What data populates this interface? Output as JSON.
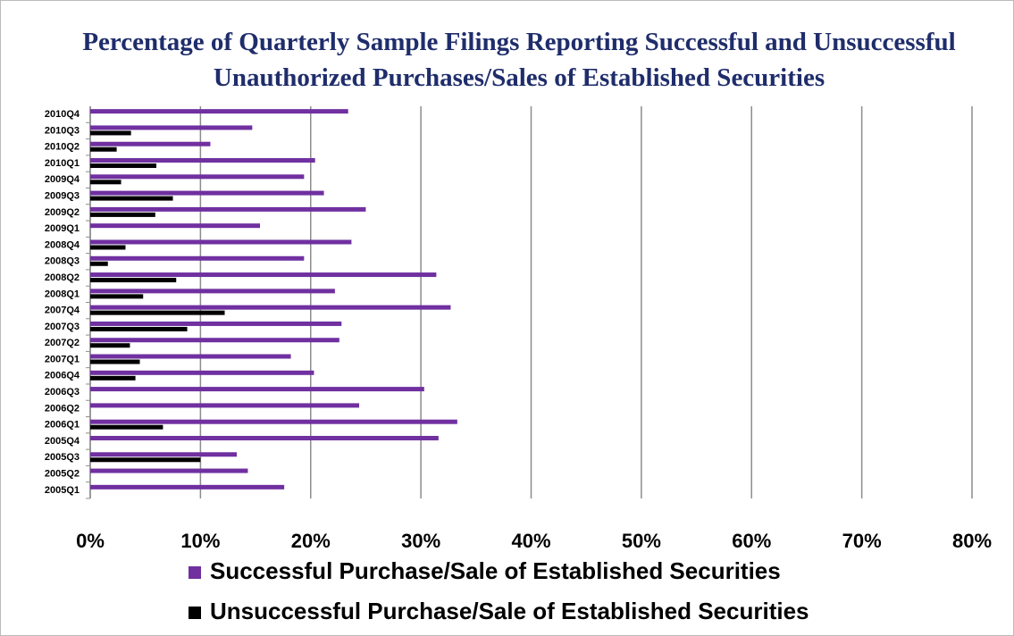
{
  "chart_data": {
    "type": "hbar",
    "title": "Percentage of Quarterly Sample Filings Reporting  Successful and Unsuccessful Unauthorized Purchases/Sales of  Established Securities",
    "categories": [
      "2005Q1",
      "2005Q2",
      "2005Q3",
      "2005Q4",
      "2006Q1",
      "2006Q2",
      "2006Q3",
      "2006Q4",
      "2007Q1",
      "2007Q2",
      "2007Q3",
      "2007Q4",
      "2008Q1",
      "2008Q2",
      "2008Q3",
      "2008Q4",
      "2009Q1",
      "2009Q2",
      "2009Q3",
      "2009Q4",
      "2010Q1",
      "2010Q2",
      "2010Q3",
      "2010Q4"
    ],
    "series": [
      {
        "name": "Successful Purchase/Sale of Established Securities",
        "color": "#7030a0",
        "values": [
          17.6,
          14.3,
          13.3,
          31.6,
          33.3,
          24.4,
          30.3,
          20.3,
          18.2,
          22.6,
          22.8,
          32.7,
          22.2,
          31.4,
          19.4,
          23.7,
          15.4,
          25.0,
          21.2,
          19.4,
          20.4,
          10.9,
          14.7,
          23.4
        ]
      },
      {
        "name": "Unsuccessful Purchase/Sale of Established Securities",
        "color": "#000000",
        "values": [
          0,
          0,
          10.0,
          0,
          6.6,
          0,
          0,
          4.1,
          4.5,
          3.6,
          8.8,
          12.2,
          4.8,
          7.8,
          1.6,
          3.2,
          0,
          5.9,
          7.5,
          2.8,
          6.0,
          2.4,
          3.7,
          0
        ]
      }
    ],
    "xlim": [
      0,
      80
    ],
    "xticks": [
      {
        "value": 0,
        "label": "0%"
      },
      {
        "value": 10,
        "label": "10%"
      },
      {
        "value": 20,
        "label": "20%"
      },
      {
        "value": 30,
        "label": "30%"
      },
      {
        "value": 40,
        "label": "40%"
      },
      {
        "value": 50,
        "label": "50%"
      },
      {
        "value": 60,
        "label": "60%"
      },
      {
        "value": 70,
        "label": "70%"
      },
      {
        "value": 80,
        "label": "80%"
      }
    ],
    "grid": true
  }
}
